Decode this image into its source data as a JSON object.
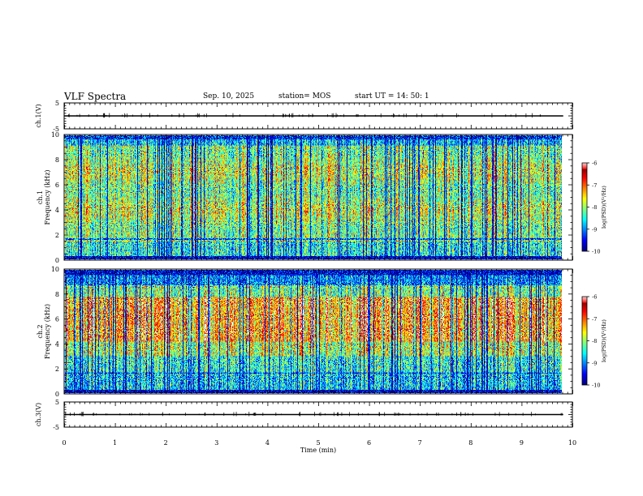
{
  "header": {
    "title": "VLF Spectra",
    "date": "Sep. 10, 2025",
    "station": "station= MOS",
    "start_ut": "start  UT =  14: 50: 1"
  },
  "chart_data": [
    {
      "name": "ch1-waveform",
      "type": "line",
      "ylabel": "ch.1(V)",
      "yticks": [
        "5",
        "-5"
      ],
      "ylim": [
        -5,
        5
      ],
      "baseline": 0
    },
    {
      "name": "ch1-spectrogram",
      "type": "heatmap",
      "ylabel_top": "ch.1",
      "ylabel": "Frequency (kHz)",
      "yticks": [
        "0",
        "2",
        "4",
        "6",
        "8",
        "10"
      ],
      "ylim": [
        0,
        10
      ],
      "xlim": [
        0,
        10
      ],
      "colorbar": {
        "label": "log(PSD)(V²/Hz)",
        "ticks": [
          "-6",
          "-7",
          "-8",
          "-9",
          "-10"
        ],
        "range": [
          -10,
          -6
        ]
      }
    },
    {
      "name": "ch2-spectrogram",
      "type": "heatmap",
      "ylabel_top": "ch.2",
      "ylabel": "Frequency (kHz)",
      "yticks": [
        "0",
        "2",
        "4",
        "6",
        "8",
        "10"
      ],
      "ylim": [
        0,
        10
      ],
      "xlim": [
        0,
        10
      ],
      "colorbar": {
        "label": "log(PSD)(V²/Hz)",
        "ticks": [
          "-6",
          "-7",
          "-8",
          "-9",
          "-10"
        ],
        "range": [
          -10,
          -6
        ]
      }
    },
    {
      "name": "ch3-waveform",
      "type": "line",
      "ylabel": "ch.3(V)",
      "yticks": [
        "5",
        "-5"
      ],
      "ylim": [
        -5,
        5
      ],
      "baseline": 0
    }
  ],
  "xaxis": {
    "label": "Time (min)",
    "ticks": [
      "0",
      "1",
      "2",
      "3",
      "4",
      "5",
      "6",
      "7",
      "8",
      "9",
      "10"
    ],
    "range": [
      0,
      10
    ],
    "data_end": 9.82
  }
}
